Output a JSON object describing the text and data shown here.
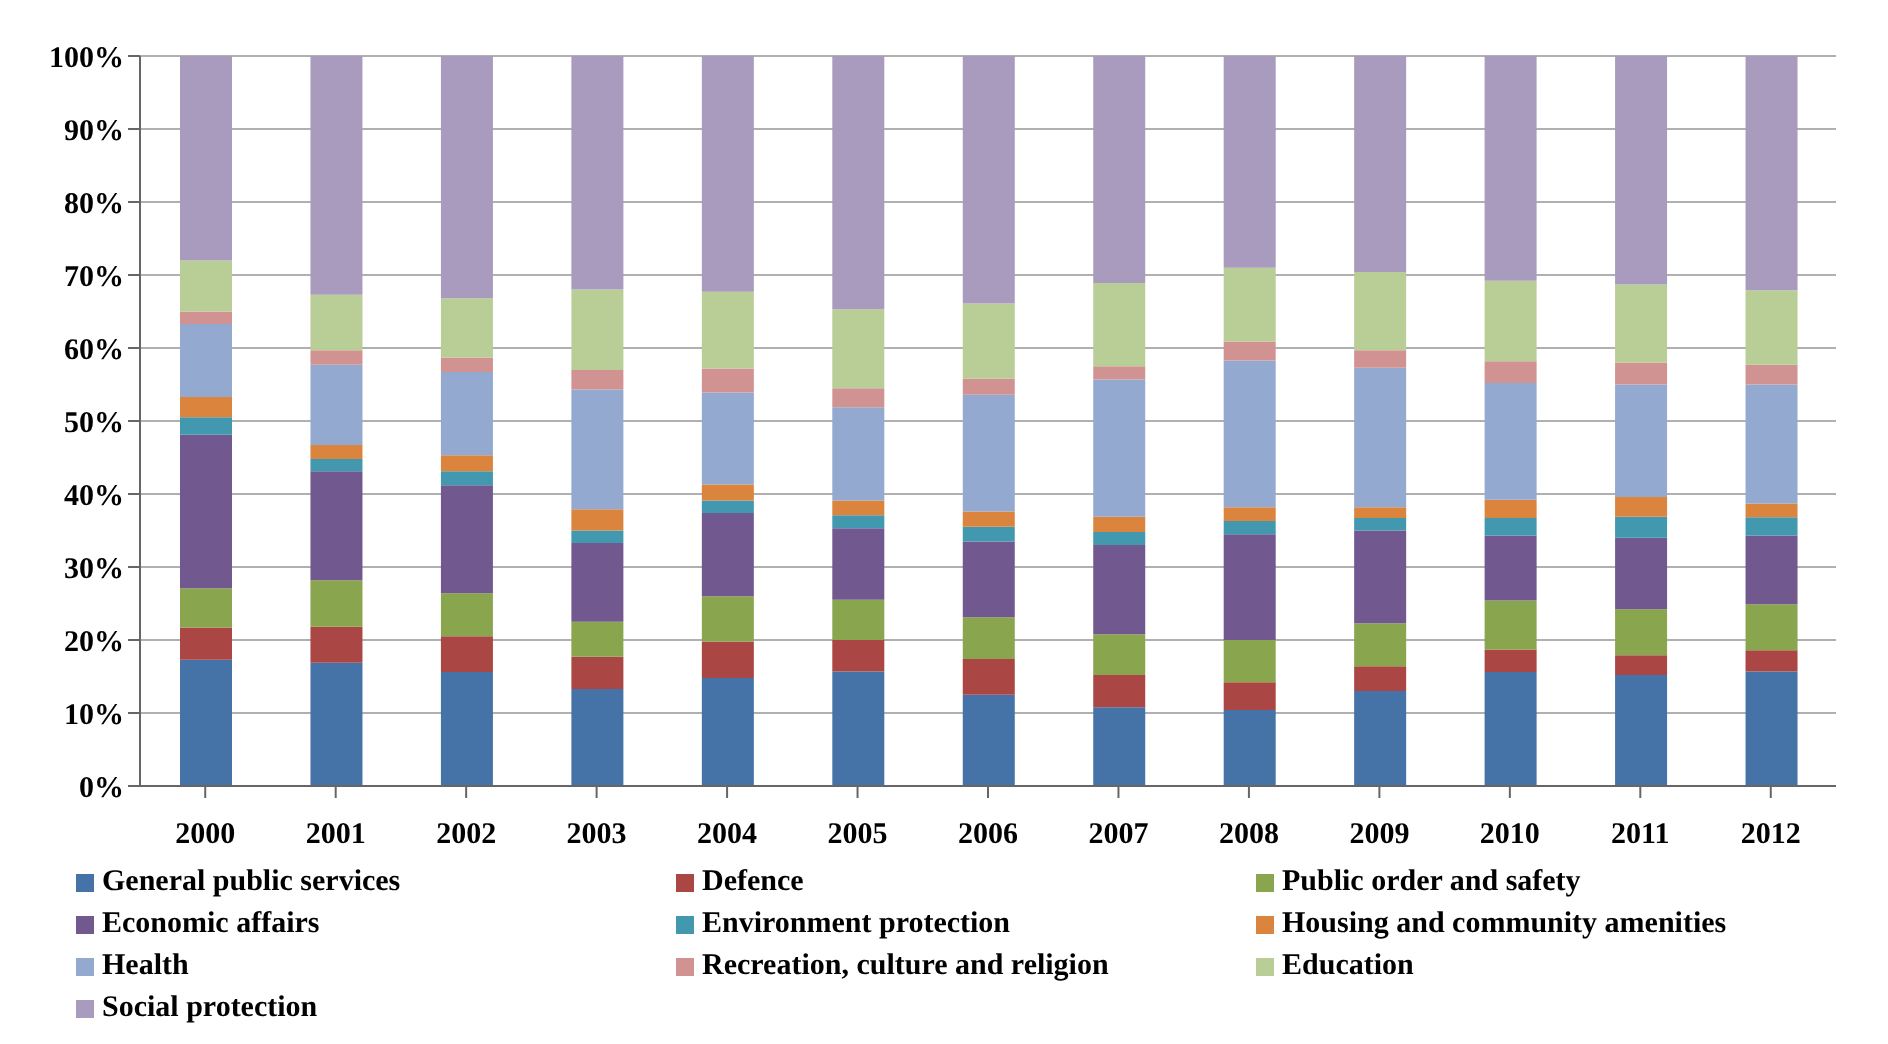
{
  "chart_data": {
    "type": "bar",
    "stacked": true,
    "categories": [
      "2000",
      "2001",
      "2002",
      "2003",
      "2004",
      "2005",
      "2006",
      "2007",
      "2008",
      "2009",
      "2010",
      "2011",
      "2012"
    ],
    "series": [
      {
        "name": "General public services",
        "color": "#4572a7",
        "values": [
          17.3,
          16.9,
          15.6,
          13.3,
          14.8,
          15.7,
          12.5,
          10.8,
          10.4,
          13.0,
          15.6,
          15.2,
          15.7
        ]
      },
      {
        "name": "Defence",
        "color": "#aa4643",
        "values": [
          4.4,
          4.9,
          4.9,
          4.4,
          5.0,
          4.3,
          4.9,
          4.4,
          3.8,
          3.4,
          3.1,
          2.7,
          2.9
        ]
      },
      {
        "name": "Public order and safety",
        "color": "#89a54e",
        "values": [
          5.4,
          6.4,
          5.9,
          4.8,
          6.2,
          5.5,
          5.7,
          5.6,
          5.8,
          5.9,
          6.7,
          6.3,
          6.3
        ]
      },
      {
        "name": "Economic affairs",
        "color": "#71588f",
        "values": [
          21.0,
          14.9,
          14.8,
          10.8,
          11.4,
          9.8,
          10.4,
          12.2,
          14.5,
          12.7,
          8.9,
          9.8,
          9.4
        ]
      },
      {
        "name": "Environment protection",
        "color": "#4198af",
        "values": [
          2.4,
          1.7,
          1.9,
          1.7,
          1.7,
          1.8,
          2.0,
          1.8,
          1.8,
          1.7,
          2.4,
          2.9,
          2.5
        ]
      },
      {
        "name": "Housing and community amenities",
        "color": "#db843d",
        "values": [
          2.8,
          1.9,
          2.2,
          2.9,
          2.2,
          2.0,
          2.1,
          2.1,
          1.9,
          1.5,
          2.5,
          2.7,
          1.9
        ]
      },
      {
        "name": "Health",
        "color": "#93a9cf",
        "values": [
          10.0,
          11.0,
          11.4,
          16.4,
          12.6,
          12.8,
          16.0,
          18.8,
          20.1,
          19.1,
          16.0,
          15.4,
          16.3
        ]
      },
      {
        "name": "Recreation, culture and religion",
        "color": "#d19392",
        "values": [
          1.7,
          2.0,
          2.0,
          2.7,
          3.3,
          2.6,
          2.2,
          1.8,
          2.6,
          2.4,
          3.0,
          3.0,
          2.7
        ]
      },
      {
        "name": "Education",
        "color": "#b9cd96",
        "values": [
          7.0,
          7.6,
          8.1,
          11.0,
          10.5,
          10.8,
          10.3,
          11.4,
          10.1,
          10.7,
          11.0,
          10.7,
          10.2
        ]
      },
      {
        "name": "Social protection",
        "color": "#a99bbd",
        "values": [
          28.0,
          32.7,
          33.2,
          32.0,
          32.3,
          34.7,
          33.9,
          31.1,
          29.0,
          29.6,
          30.8,
          31.3,
          32.1
        ]
      }
    ],
    "ylim": [
      0,
      100
    ],
    "yticks": [
      {
        "value": 0,
        "label": "0%"
      },
      {
        "value": 10,
        "label": "10%"
      },
      {
        "value": 20,
        "label": "20%"
      },
      {
        "value": 30,
        "label": "30%"
      },
      {
        "value": 40,
        "label": "40%"
      },
      {
        "value": 50,
        "label": "50%"
      },
      {
        "value": 60,
        "label": "60%"
      },
      {
        "value": 70,
        "label": "70%"
      },
      {
        "value": 80,
        "label": "80%"
      },
      {
        "value": 90,
        "label": "90%"
      },
      {
        "value": 100,
        "label": "100%"
      }
    ],
    "grid": "y",
    "legend": "bottom"
  }
}
